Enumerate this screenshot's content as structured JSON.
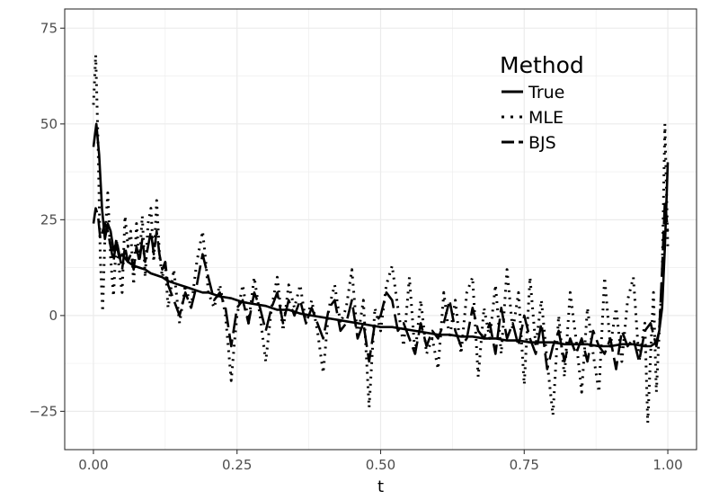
{
  "chart_data": {
    "type": "line",
    "xlabel": "t",
    "ylabel": "",
    "xlim": [
      -0.05,
      1.05
    ],
    "ylim": [
      -35,
      80
    ],
    "x_ticks": [
      0.0,
      0.25,
      0.5,
      0.75,
      1.0
    ],
    "x_tick_labels": [
      "0.00",
      "0.25",
      "0.50",
      "0.75",
      "1.00"
    ],
    "y_ticks": [
      -25,
      0,
      25,
      50,
      75
    ],
    "y_tick_labels": [
      "−25",
      "0",
      "25",
      "50",
      "75"
    ],
    "grid": true,
    "legend": {
      "title": "Method",
      "placement": "top-right-inside",
      "entries": [
        "True",
        "MLE",
        "BJS"
      ]
    },
    "series": [
      {
        "name": "True",
        "line_style": "solid",
        "color": "#000000",
        "x": [
          0.0,
          0.005,
          0.01,
          0.015,
          0.02,
          0.025,
          0.03,
          0.035,
          0.04,
          0.045,
          0.05,
          0.06,
          0.07,
          0.08,
          0.09,
          0.1,
          0.11,
          0.12,
          0.13,
          0.14,
          0.15,
          0.16,
          0.17,
          0.18,
          0.19,
          0.2,
          0.22,
          0.24,
          0.26,
          0.28,
          0.3,
          0.32,
          0.34,
          0.36,
          0.38,
          0.4,
          0.42,
          0.44,
          0.46,
          0.48,
          0.5,
          0.52,
          0.54,
          0.56,
          0.58,
          0.6,
          0.62,
          0.64,
          0.66,
          0.68,
          0.7,
          0.72,
          0.74,
          0.76,
          0.78,
          0.8,
          0.82,
          0.84,
          0.86,
          0.88,
          0.9,
          0.92,
          0.94,
          0.96,
          0.97,
          0.98,
          0.985,
          0.99,
          0.995,
          1.0
        ],
        "y": [
          44,
          50,
          42,
          28,
          20,
          24,
          22,
          17,
          19,
          15,
          16,
          14,
          13,
          12.5,
          12,
          11,
          10.5,
          10,
          9,
          8.5,
          8,
          7.5,
          7,
          6.5,
          6,
          6,
          5,
          4.5,
          3.5,
          3,
          2.5,
          1.5,
          1.5,
          0.5,
          0,
          -0.5,
          -1,
          -1.5,
          -2,
          -2.5,
          -3,
          -3,
          -3.5,
          -4,
          -4.5,
          -5,
          -5,
          -5.5,
          -5.5,
          -6,
          -6,
          -6.5,
          -6.5,
          -7,
          -7,
          -7,
          -7.5,
          -7.5,
          -7.5,
          -8,
          -8,
          -7.5,
          -7.5,
          -8,
          -8,
          -7,
          -4,
          2,
          18,
          40
        ]
      },
      {
        "name": "MLE",
        "line_style": "dotted",
        "color": "#000000",
        "x": [
          0.0,
          0.004,
          0.008,
          0.012,
          0.016,
          0.02,
          0.025,
          0.03,
          0.035,
          0.04,
          0.045,
          0.05,
          0.055,
          0.06,
          0.065,
          0.07,
          0.075,
          0.08,
          0.085,
          0.09,
          0.095,
          0.1,
          0.105,
          0.11,
          0.115,
          0.12,
          0.125,
          0.13,
          0.14,
          0.15,
          0.16,
          0.17,
          0.18,
          0.19,
          0.195,
          0.2,
          0.21,
          0.22,
          0.23,
          0.24,
          0.245,
          0.25,
          0.26,
          0.27,
          0.28,
          0.29,
          0.3,
          0.31,
          0.32,
          0.33,
          0.34,
          0.35,
          0.36,
          0.37,
          0.38,
          0.39,
          0.4,
          0.41,
          0.42,
          0.43,
          0.44,
          0.45,
          0.46,
          0.47,
          0.48,
          0.49,
          0.5,
          0.51,
          0.52,
          0.53,
          0.54,
          0.55,
          0.56,
          0.57,
          0.58,
          0.59,
          0.6,
          0.61,
          0.62,
          0.63,
          0.64,
          0.65,
          0.66,
          0.67,
          0.68,
          0.69,
          0.7,
          0.71,
          0.72,
          0.73,
          0.74,
          0.75,
          0.76,
          0.77,
          0.78,
          0.79,
          0.8,
          0.81,
          0.82,
          0.83,
          0.84,
          0.85,
          0.86,
          0.87,
          0.88,
          0.89,
          0.9,
          0.91,
          0.92,
          0.93,
          0.94,
          0.95,
          0.96,
          0.965,
          0.97,
          0.975,
          0.98,
          0.985,
          0.99,
          0.995,
          1.0
        ],
        "y": [
          55,
          68,
          45,
          15,
          1,
          20,
          32,
          15,
          5,
          20,
          12,
          6,
          26,
          18,
          22,
          8,
          24,
          14,
          26,
          10,
          24,
          28,
          14,
          30,
          16,
          10,
          14,
          2,
          12,
          -2,
          8,
          2,
          14,
          22,
          15,
          6,
          2,
          8,
          0,
          -17,
          -8,
          0,
          8,
          -2,
          10,
          0,
          -12,
          2,
          10,
          -4,
          8,
          2,
          8,
          -2,
          4,
          -4,
          -15,
          2,
          8,
          -2,
          2,
          12,
          -6,
          4,
          -24,
          2,
          -4,
          8,
          13,
          2,
          -8,
          10,
          -10,
          4,
          -10,
          -6,
          -14,
          6,
          -6,
          4,
          -10,
          6,
          10,
          -16,
          2,
          -6,
          8,
          -10,
          12,
          -4,
          6,
          -18,
          10,
          -8,
          4,
          -12,
          -26,
          0,
          -16,
          6,
          -6,
          -20,
          2,
          -10,
          -20,
          10,
          -8,
          2,
          -12,
          4,
          10,
          -12,
          -2,
          -28,
          -10,
          6,
          -20,
          -4,
          10,
          50,
          18
        ]
      },
      {
        "name": "BJS",
        "line_style": "longdash",
        "color": "#000000",
        "x": [
          0.0,
          0.004,
          0.008,
          0.012,
          0.016,
          0.02,
          0.025,
          0.03,
          0.035,
          0.04,
          0.045,
          0.05,
          0.055,
          0.06,
          0.065,
          0.07,
          0.075,
          0.08,
          0.085,
          0.09,
          0.095,
          0.1,
          0.105,
          0.11,
          0.115,
          0.12,
          0.125,
          0.13,
          0.14,
          0.15,
          0.16,
          0.17,
          0.18,
          0.19,
          0.2,
          0.21,
          0.22,
          0.23,
          0.24,
          0.25,
          0.26,
          0.27,
          0.28,
          0.29,
          0.3,
          0.31,
          0.32,
          0.33,
          0.34,
          0.35,
          0.36,
          0.37,
          0.38,
          0.39,
          0.4,
          0.41,
          0.42,
          0.43,
          0.44,
          0.45,
          0.46,
          0.47,
          0.48,
          0.49,
          0.5,
          0.51,
          0.52,
          0.53,
          0.54,
          0.55,
          0.56,
          0.57,
          0.58,
          0.59,
          0.6,
          0.61,
          0.62,
          0.63,
          0.64,
          0.65,
          0.66,
          0.67,
          0.68,
          0.69,
          0.7,
          0.71,
          0.72,
          0.73,
          0.74,
          0.75,
          0.76,
          0.77,
          0.78,
          0.79,
          0.8,
          0.81,
          0.82,
          0.83,
          0.84,
          0.85,
          0.86,
          0.87,
          0.88,
          0.89,
          0.9,
          0.91,
          0.92,
          0.93,
          0.94,
          0.95,
          0.96,
          0.97,
          0.98,
          0.985,
          0.99,
          0.995,
          1.0
        ],
        "y": [
          24,
          28,
          26,
          20,
          22,
          24,
          22,
          18,
          14,
          20,
          16,
          12,
          18,
          14,
          16,
          12,
          18,
          14,
          20,
          14,
          18,
          22,
          16,
          22,
          16,
          12,
          14,
          8,
          4,
          0,
          6,
          2,
          8,
          16,
          10,
          4,
          6,
          2,
          -8,
          2,
          4,
          -2,
          6,
          2,
          -4,
          2,
          6,
          -2,
          4,
          0,
          4,
          -2,
          2,
          -2,
          -6,
          2,
          4,
          -4,
          -2,
          4,
          -6,
          -2,
          -12,
          -2,
          0,
          6,
          4,
          -4,
          -2,
          -6,
          -10,
          -2,
          -8,
          -4,
          -6,
          -2,
          4,
          -4,
          -8,
          -6,
          2,
          -4,
          -6,
          -2,
          -10,
          2,
          -6,
          -2,
          -8,
          0,
          -6,
          -10,
          -2,
          -14,
          -8,
          -4,
          -12,
          -6,
          -10,
          -6,
          -12,
          -4,
          -8,
          -10,
          -6,
          -14,
          -4,
          -8,
          -6,
          -12,
          -4,
          -2,
          -8,
          -4,
          12,
          30,
          22
        ]
      }
    ]
  }
}
